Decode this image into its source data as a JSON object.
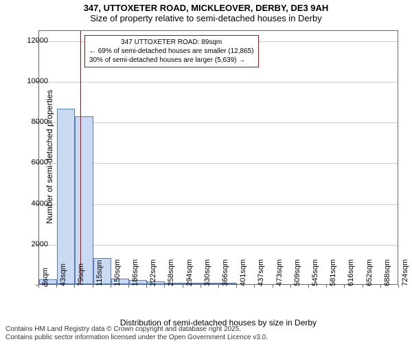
{
  "title": {
    "line1": "347, UTTOXETER ROAD, MICKLEOVER, DERBY, DE3 9AH",
    "line2": "Size of property relative to semi-detached houses in Derby"
  },
  "chart": {
    "type": "histogram",
    "background_color": "#ffffff",
    "grid_color": "#cccccc",
    "axis_color": "#666666",
    "yaxis": {
      "label": "Number of semi-detached properties",
      "ticks": [
        0,
        2000,
        4000,
        6000,
        8000,
        10000,
        12000
      ],
      "min": 0,
      "max": 12500
    },
    "xaxis": {
      "label": "Distribution of semi-detached houses by size in Derby",
      "tick_labels": [
        "7sqm",
        "43sqm",
        "79sqm",
        "115sqm",
        "150sqm",
        "186sqm",
        "222sqm",
        "258sqm",
        "294sqm",
        "330sqm",
        "366sqm",
        "401sqm",
        "437sqm",
        "473sqm",
        "509sqm",
        "545sqm",
        "581sqm",
        "616sqm",
        "652sqm",
        "688sqm",
        "724sqm"
      ]
    },
    "bars": {
      "fill_color": "#c9daf2",
      "border_color": "#5a7db5",
      "values": [
        250,
        8600,
        8250,
        1300,
        280,
        190,
        120,
        60,
        45,
        30,
        20,
        0,
        0,
        0,
        0,
        0,
        0,
        0,
        0,
        0
      ]
    },
    "reference": {
      "value_sqm": 89,
      "line_color": "#cc0000"
    },
    "annotation": {
      "line1": "347 UTTOXETER ROAD: 89sqm",
      "line2": "← 69% of semi-detached houses are smaller (12,865)",
      "line3": "30% of semi-detached houses are larger (5,639) →",
      "border_color": "#cc0000",
      "background_color": "#ffffff",
      "fontsize": 10
    }
  },
  "footer": {
    "line1": "Contains HM Land Registry data © Crown copyright and database right 2025.",
    "line2": "Contains public sector information licensed under the Open Government Licence v3.0."
  }
}
